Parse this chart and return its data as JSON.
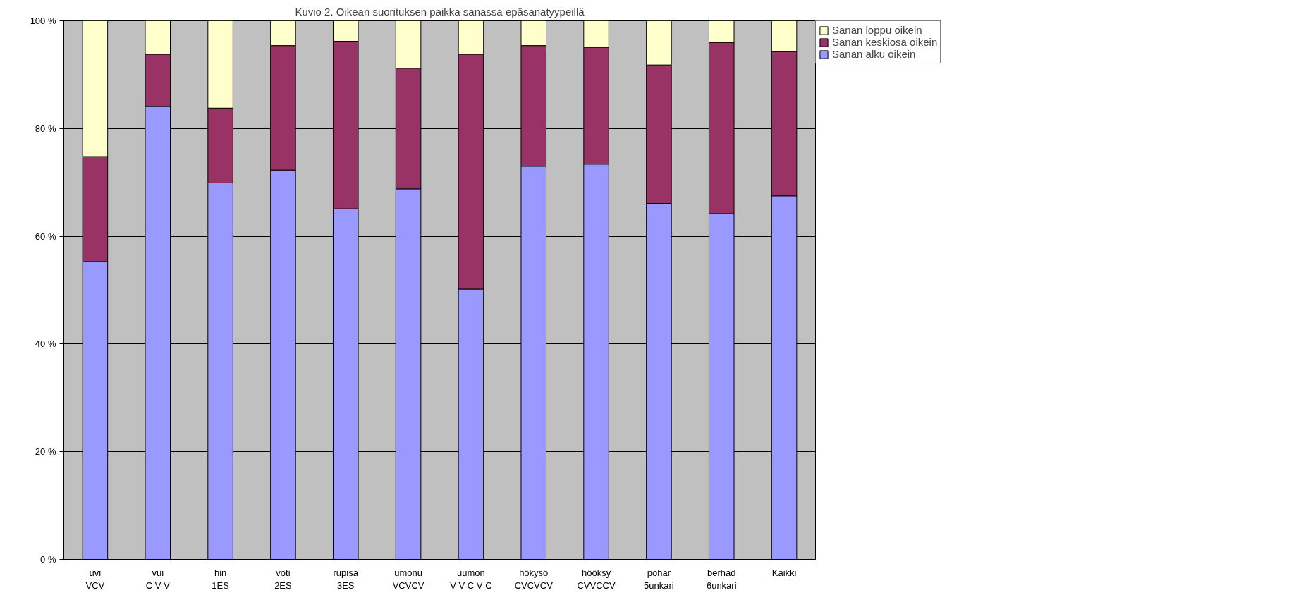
{
  "chart_data": {
    "type": "bar",
    "stacked": true,
    "title": "Kuvio 2. Oikean suorituksen paikka sanassa epäsanatyypeillä",
    "categories": [
      "uvi\nVCV",
      "vui\nC V V",
      "hin\n1ES",
      "voti\n2ES",
      "rupisa\n3ES",
      "umonu\nVCVCV",
      "uumon\nV V C V C",
      "hökysö\nCVCVCV",
      "hööksy\nCVVCCV",
      "pohar\n5unkari",
      "berhad\n6unkari",
      "Kaikki"
    ],
    "series": [
      {
        "name": "Sanan alku oikein",
        "color": "#9999ff",
        "values": [
          55.3,
          84.1,
          69.9,
          72.3,
          65.1,
          68.8,
          50.2,
          73.0,
          73.4,
          66.1,
          64.2,
          67.5
        ]
      },
      {
        "name": "Sanan keskiosa oikein",
        "color": "#993366",
        "values": [
          19.5,
          9.7,
          13.9,
          23.1,
          31.1,
          22.4,
          43.6,
          22.4,
          21.7,
          25.7,
          31.8,
          26.8
        ]
      },
      {
        "name": "Sanan loppu oikein",
        "color": "#ffffcc",
        "values": [
          25.2,
          6.2,
          16.2,
          4.6,
          3.8,
          8.8,
          6.2,
          4.6,
          4.9,
          8.2,
          4.0,
          5.7
        ]
      }
    ],
    "ylim": [
      0,
      100
    ],
    "yticks": [
      {
        "value": 0,
        "label": "0 %"
      },
      {
        "value": 20,
        "label": "20 %"
      },
      {
        "value": 40,
        "label": "40 %"
      },
      {
        "value": 60,
        "label": "60 %"
      },
      {
        "value": 80,
        "label": "80 %"
      },
      {
        "value": 100,
        "label": "100 %"
      }
    ],
    "grid": "y",
    "legend": "top right"
  }
}
